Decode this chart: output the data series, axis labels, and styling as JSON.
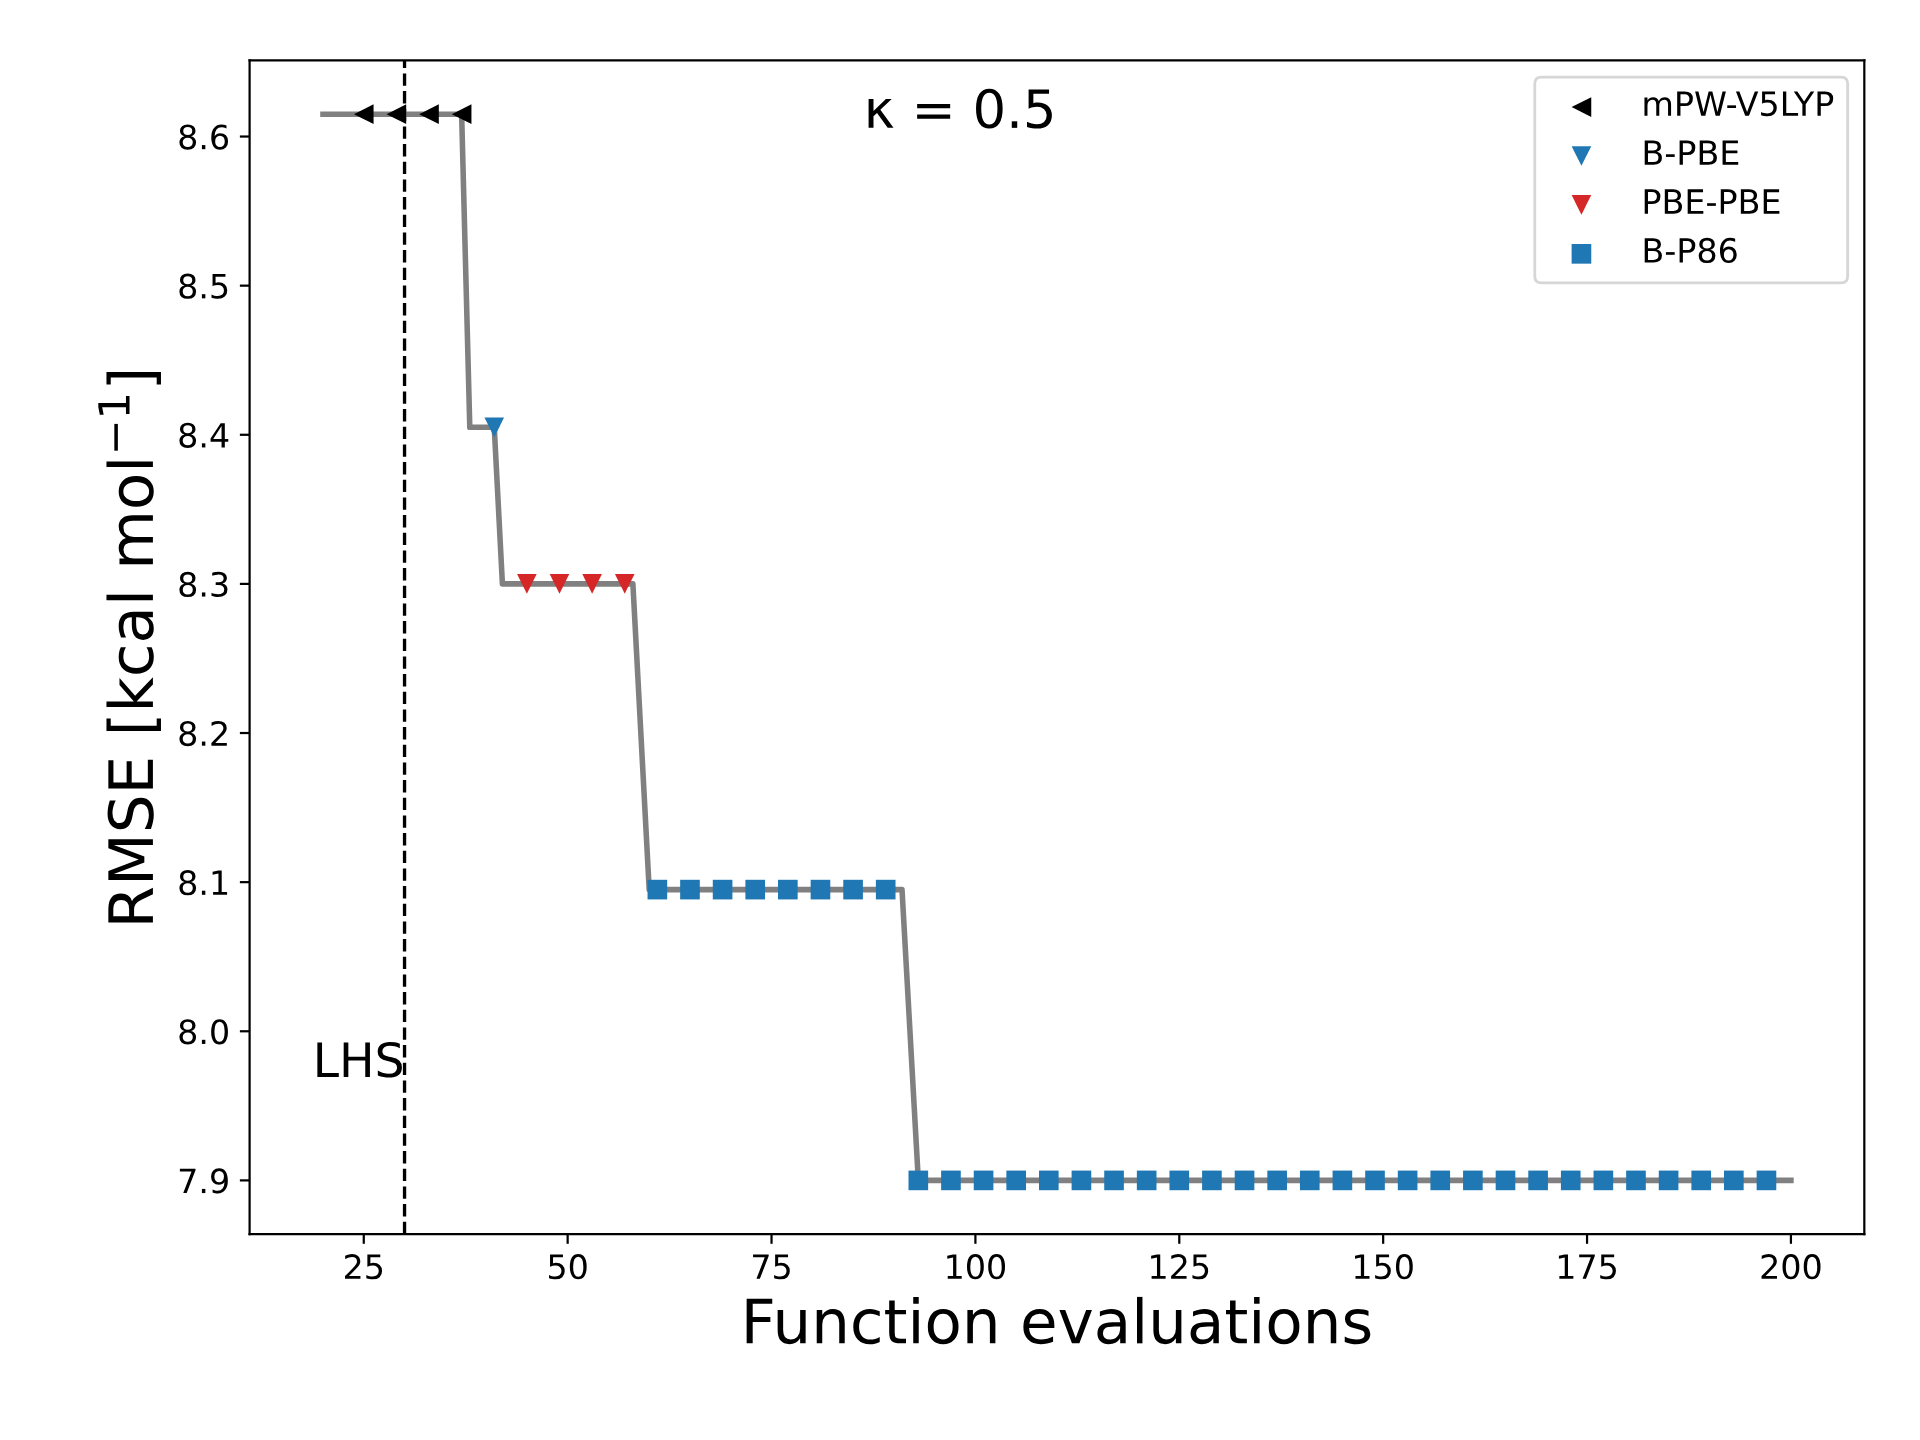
{
  "chart_data": {
    "type": "scatter",
    "xlabel": "Function evaluations",
    "ylabel": "RMSE [kcal mol$^{−1}$]",
    "annotations": [
      "κ = 0.5"
    ],
    "series": [
      {
        "type": "line",
        "color": "#808080",
        "marker": "none",
        "x": [
          20,
          37,
          38,
          41,
          42,
          58,
          60,
          91,
          93,
          200
        ],
        "values": [
          8.615,
          8.615,
          8.405,
          8.405,
          8.3,
          8.3,
          8.095,
          8.095,
          7.9,
          7.9
        ]
      },
      {
        "name": "mPW-V5LYP",
        "color": "#000000",
        "marker": "triangle_left",
        "x": [
          25,
          29,
          33,
          37
        ],
        "values": [
          8.615,
          8.615,
          8.615,
          8.615
        ]
      },
      {
        "name": "B-PBE",
        "color": "#1f77b4",
        "marker": "triangle_down",
        "x": [
          41
        ],
        "values": [
          8.405
        ]
      },
      {
        "name": "PBE-PBE",
        "color": "#d62728",
        "marker": "triangle_down",
        "x": [
          45,
          49,
          53,
          57
        ],
        "values": [
          8.3,
          8.3,
          8.3,
          8.3
        ]
      },
      {
        "name": "B-P86",
        "color": "#1f77b4",
        "marker": "square",
        "x": [
          61,
          65,
          69,
          73,
          77,
          81,
          85,
          89,
          93,
          97,
          101,
          105,
          109,
          113,
          117,
          121,
          125,
          129,
          133,
          137,
          141,
          145,
          149,
          153,
          157,
          161,
          165,
          169,
          173,
          177,
          181,
          185,
          189,
          193,
          197
        ],
        "values": [
          8.095,
          8.095,
          8.095,
          8.095,
          8.095,
          8.095,
          8.095,
          8.095,
          7.9,
          7.9,
          7.9,
          7.9,
          7.9,
          7.9,
          7.9,
          7.9,
          7.9,
          7.9,
          7.9,
          7.9,
          7.9,
          7.9,
          7.9,
          7.9,
          7.9,
          7.9,
          7.9,
          7.9,
          7.9,
          7.9,
          7.9,
          7.9,
          7.9,
          7.9,
          7.9
        ]
      }
    ],
    "ref_lines": [
      {
        "axis": "x",
        "value": 30,
        "label": "LHS",
        "color": "#000000",
        "line_style": "dashed"
      }
    ],
    "xlim": [
      11,
      209
    ],
    "ylim": [
      7.864,
      8.651
    ],
    "xticks": [
      25,
      50,
      75,
      100,
      125,
      150,
      175,
      200
    ],
    "yticks": [
      7.9,
      {
        "value": 8.0,
        "label": "8.0"
      },
      8.1,
      8.2,
      8.3,
      8.4,
      8.5,
      8.6
    ],
    "legend": "top right",
    "grid": false
  }
}
